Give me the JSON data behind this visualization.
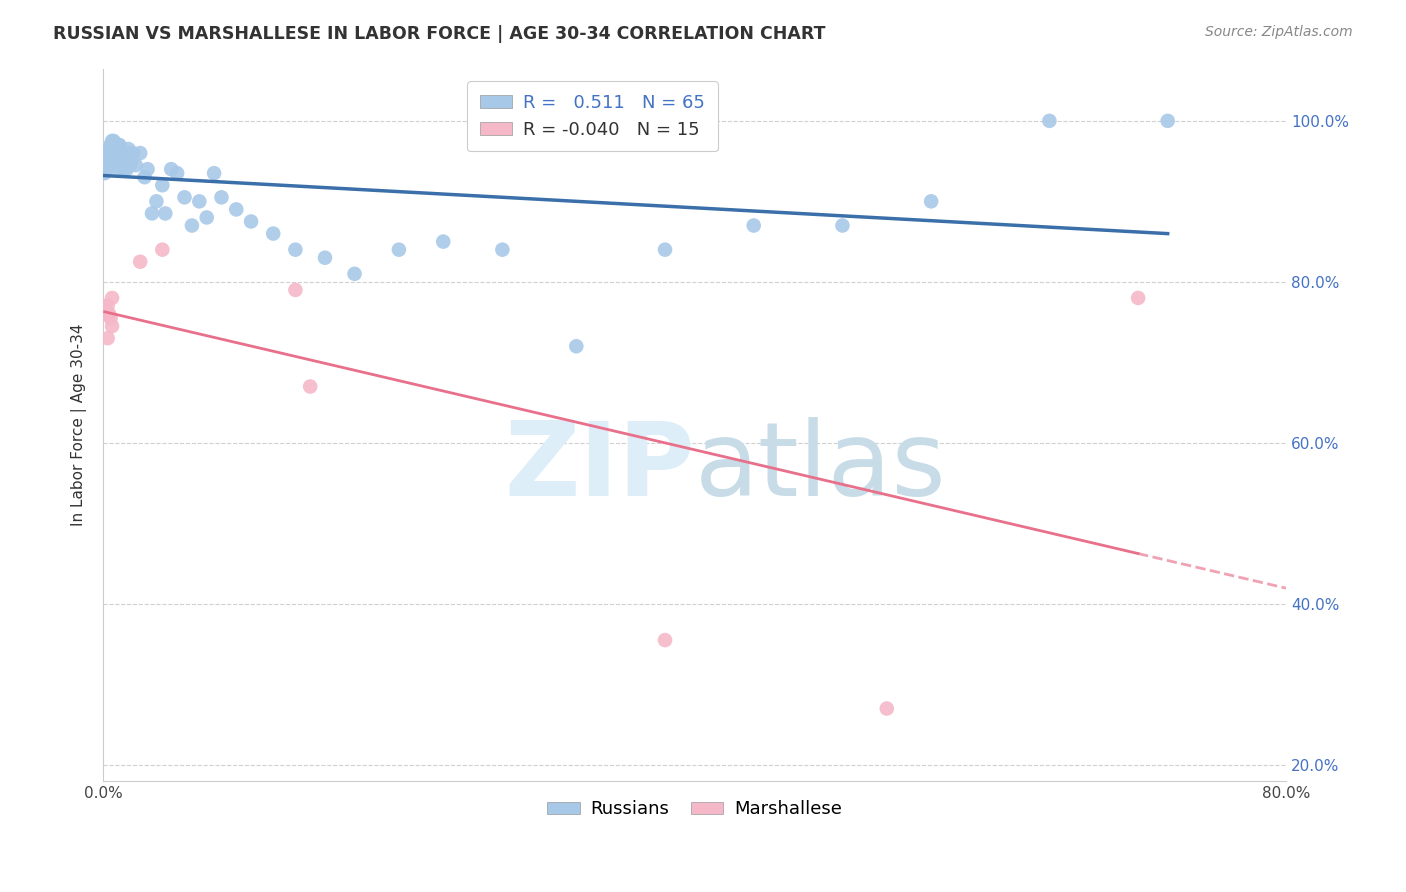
{
  "title": "RUSSIAN VS MARSHALLESE IN LABOR FORCE | AGE 30-34 CORRELATION CHART",
  "source": "Source: ZipAtlas.com",
  "ylabel": "In Labor Force | Age 30-34",
  "xlim": [
    0.0,
    0.8
  ],
  "ylim": [
    0.18,
    1.065
  ],
  "yticks": [
    0.2,
    0.4,
    0.6,
    0.8,
    1.0
  ],
  "yticklabels": [
    "20.0%",
    "40.0%",
    "60.0%",
    "80.0%",
    "100.0%"
  ],
  "xticks": [
    0.0,
    0.1,
    0.2,
    0.3,
    0.4,
    0.5,
    0.6,
    0.7,
    0.8
  ],
  "xticklabels": [
    "0.0%",
    "",
    "",
    "",
    "",
    "",
    "",
    "",
    "80.0%"
  ],
  "legend_russian_R": "0.511",
  "legend_russian_N": "65",
  "legend_marshallese_R": "-0.040",
  "legend_marshallese_N": "15",
  "russian_color": "#a8c8e8",
  "marshallese_color": "#f4b8c8",
  "russian_line_color": "#3a6faa",
  "marshallese_line_color": "#e8708a",
  "background_color": "#ffffff",
  "watermark_color": "#ddeef8",
  "russian_x": [
    0.001,
    0.002,
    0.002,
    0.003,
    0.003,
    0.004,
    0.004,
    0.005,
    0.005,
    0.005,
    0.006,
    0.006,
    0.006,
    0.007,
    0.007,
    0.007,
    0.008,
    0.008,
    0.009,
    0.009,
    0.01,
    0.01,
    0.011,
    0.011,
    0.012,
    0.013,
    0.014,
    0.015,
    0.016,
    0.017,
    0.018,
    0.019,
    0.02,
    0.022,
    0.025,
    0.028,
    0.03,
    0.033,
    0.036,
    0.04,
    0.042,
    0.046,
    0.05,
    0.055,
    0.06,
    0.065,
    0.07,
    0.075,
    0.08,
    0.09,
    0.1,
    0.115,
    0.13,
    0.15,
    0.17,
    0.2,
    0.23,
    0.27,
    0.32,
    0.38,
    0.44,
    0.5,
    0.56,
    0.64,
    0.72
  ],
  "russian_y": [
    0.935,
    0.94,
    0.955,
    0.95,
    0.96,
    0.945,
    0.965,
    0.95,
    0.96,
    0.97,
    0.945,
    0.955,
    0.975,
    0.95,
    0.96,
    0.975,
    0.945,
    0.97,
    0.94,
    0.965,
    0.945,
    0.97,
    0.945,
    0.97,
    0.955,
    0.955,
    0.94,
    0.96,
    0.94,
    0.965,
    0.945,
    0.95,
    0.96,
    0.945,
    0.96,
    0.93,
    0.94,
    0.885,
    0.9,
    0.92,
    0.885,
    0.94,
    0.935,
    0.905,
    0.87,
    0.9,
    0.88,
    0.935,
    0.905,
    0.89,
    0.875,
    0.86,
    0.84,
    0.83,
    0.81,
    0.84,
    0.85,
    0.84,
    0.72,
    0.84,
    0.87,
    0.87,
    0.9,
    1.0,
    1.0
  ],
  "marshallese_x": [
    0.001,
    0.002,
    0.003,
    0.003,
    0.004,
    0.005,
    0.006,
    0.006,
    0.025,
    0.04,
    0.13,
    0.14,
    0.38,
    0.53,
    0.7
  ],
  "marshallese_y": [
    0.77,
    0.76,
    0.77,
    0.73,
    0.76,
    0.755,
    0.745,
    0.78,
    0.825,
    0.84,
    0.79,
    0.67,
    0.355,
    0.27,
    0.78
  ]
}
